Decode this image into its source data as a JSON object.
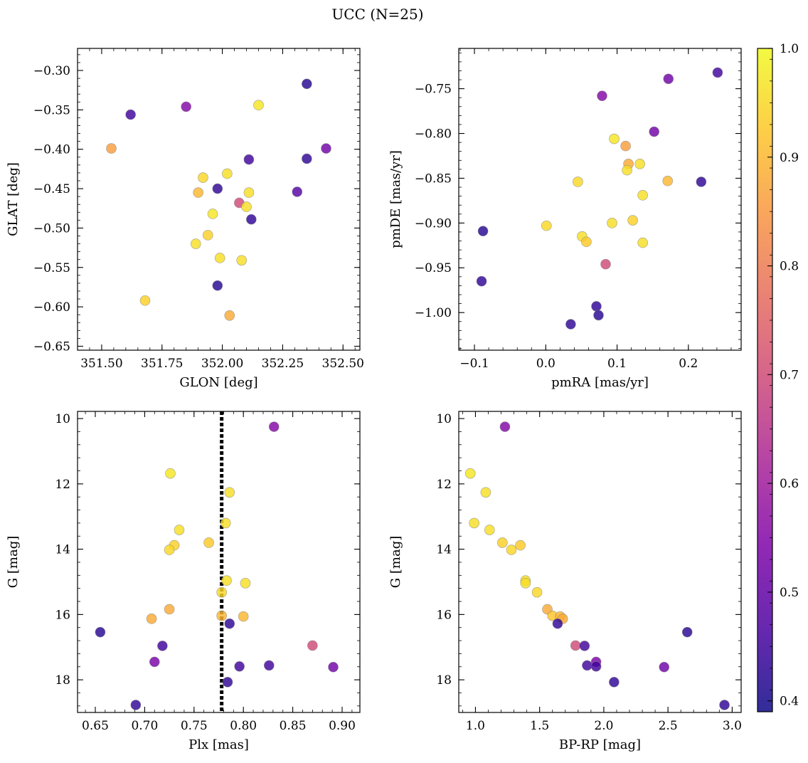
{
  "figure": {
    "title": "UCC (N=25)",
    "colormap": "plasma",
    "colorbar": {
      "min": 0.39,
      "max": 1.0,
      "ticks": [
        0.4,
        0.5,
        0.6,
        0.7,
        0.8,
        0.9,
        1.0
      ],
      "tick_labels": [
        "0.4",
        "0.5",
        "0.6",
        "0.7",
        "0.8",
        "0.9",
        "1.0"
      ]
    }
  },
  "chart_data": [
    {
      "type": "scatter",
      "id": "glon-glat",
      "xlabel": "GLON [deg]",
      "ylabel": "GLAT [deg]",
      "xlim": [
        351.4,
        352.57
      ],
      "ylim": [
        -0.655,
        -0.272
      ],
      "invert_y": false,
      "xticks": [
        351.5,
        351.75,
        352.0,
        352.25,
        352.5
      ],
      "xtick_labels": [
        "351.50",
        "351.75",
        "352.00",
        "352.25",
        "352.50"
      ],
      "yticks": [
        -0.3,
        -0.35,
        -0.4,
        -0.45,
        -0.5,
        -0.55,
        -0.6,
        -0.65
      ],
      "ytick_labels": [
        "−0.30",
        "−0.35",
        "−0.40",
        "−0.45",
        "−0.50",
        "−0.55",
        "−0.60",
        "−0.65"
      ],
      "points": [
        {
          "x": 352.35,
          "y": -0.317,
          "c": 0.42
        },
        {
          "x": 351.62,
          "y": -0.356,
          "c": 0.45
        },
        {
          "x": 351.85,
          "y": -0.346,
          "c": 0.55
        },
        {
          "x": 352.15,
          "y": -0.344,
          "c": 0.97
        },
        {
          "x": 351.54,
          "y": -0.399,
          "c": 0.86
        },
        {
          "x": 352.43,
          "y": -0.399,
          "c": 0.52
        },
        {
          "x": 352.11,
          "y": -0.413,
          "c": 0.45
        },
        {
          "x": 352.35,
          "y": -0.412,
          "c": 0.43
        },
        {
          "x": 351.92,
          "y": -0.436,
          "c": 0.95
        },
        {
          "x": 352.02,
          "y": -0.431,
          "c": 0.96
        },
        {
          "x": 351.98,
          "y": -0.45,
          "c": 0.43
        },
        {
          "x": 351.9,
          "y": -0.455,
          "c": 0.9
        },
        {
          "x": 352.11,
          "y": -0.455,
          "c": 0.96
        },
        {
          "x": 352.31,
          "y": -0.454,
          "c": 0.48
        },
        {
          "x": 352.07,
          "y": -0.468,
          "c": 0.7
        },
        {
          "x": 352.1,
          "y": -0.473,
          "c": 0.96
        },
        {
          "x": 351.96,
          "y": -0.482,
          "c": 0.97
        },
        {
          "x": 352.12,
          "y": -0.489,
          "c": 0.43
        },
        {
          "x": 351.94,
          "y": -0.509,
          "c": 0.94
        },
        {
          "x": 351.89,
          "y": -0.52,
          "c": 0.96
        },
        {
          "x": 351.99,
          "y": -0.538,
          "c": 0.96
        },
        {
          "x": 352.08,
          "y": -0.541,
          "c": 0.96
        },
        {
          "x": 351.98,
          "y": -0.573,
          "c": 0.42
        },
        {
          "x": 351.68,
          "y": -0.592,
          "c": 0.94
        },
        {
          "x": 352.03,
          "y": -0.611,
          "c": 0.88
        }
      ]
    },
    {
      "type": "scatter",
      "id": "pmra-pmde",
      "xlabel": "pmRA [mas/yr]",
      "ylabel": "pmDE [mas/yr]",
      "xlim": [
        -0.122,
        0.274
      ],
      "ylim": [
        -1.042,
        -0.705
      ],
      "invert_y": false,
      "xticks": [
        -0.1,
        0.0,
        0.1,
        0.2
      ],
      "xtick_labels": [
        "−0.1",
        "0.0",
        "0.1",
        "0.2"
      ],
      "yticks": [
        -0.75,
        -0.8,
        -0.85,
        -0.9,
        -0.95,
        -1.0
      ],
      "ytick_labels": [
        "−0.75",
        "−0.80",
        "−0.85",
        "−0.90",
        "−0.95",
        "−1.00"
      ],
      "points": [
        {
          "x": 0.241,
          "y": -0.732,
          "c": 0.45
        },
        {
          "x": 0.172,
          "y": -0.739,
          "c": 0.52
        },
        {
          "x": 0.079,
          "y": -0.758,
          "c": 0.55
        },
        {
          "x": 0.152,
          "y": -0.798,
          "c": 0.52
        },
        {
          "x": 0.096,
          "y": -0.806,
          "c": 0.97
        },
        {
          "x": 0.112,
          "y": -0.814,
          "c": 0.86
        },
        {
          "x": 0.116,
          "y": -0.834,
          "c": 0.88
        },
        {
          "x": 0.132,
          "y": -0.834,
          "c": 0.96
        },
        {
          "x": 0.114,
          "y": -0.841,
          "c": 0.96
        },
        {
          "x": 0.045,
          "y": -0.854,
          "c": 0.95
        },
        {
          "x": 0.171,
          "y": -0.853,
          "c": 0.9
        },
        {
          "x": 0.218,
          "y": -0.854,
          "c": 0.43
        },
        {
          "x": 0.136,
          "y": -0.869,
          "c": 0.96
        },
        {
          "x": 0.122,
          "y": -0.897,
          "c": 0.94
        },
        {
          "x": 0.093,
          "y": -0.9,
          "c": 0.96
        },
        {
          "x": 0.001,
          "y": -0.903,
          "c": 0.95
        },
        {
          "x": -0.088,
          "y": -0.909,
          "c": 0.42
        },
        {
          "x": 0.051,
          "y": -0.915,
          "c": 0.96
        },
        {
          "x": 0.057,
          "y": -0.921,
          "c": 0.93
        },
        {
          "x": 0.136,
          "y": -0.922,
          "c": 0.96
        },
        {
          "x": 0.084,
          "y": -0.946,
          "c": 0.7
        },
        {
          "x": -0.09,
          "y": -0.965,
          "c": 0.43
        },
        {
          "x": 0.071,
          "y": -0.993,
          "c": 0.43
        },
        {
          "x": 0.074,
          "y": -1.003,
          "c": 0.42
        },
        {
          "x": 0.035,
          "y": -1.013,
          "c": 0.43
        }
      ]
    },
    {
      "type": "scatter",
      "id": "plx-g",
      "xlabel": "Plx [mas]",
      "ylabel": "G [mag]",
      "xlim": [
        0.632,
        0.918
      ],
      "ylim": [
        19.0,
        9.78
      ],
      "invert_y": true,
      "vline": {
        "x": 0.778,
        "style": "dotted",
        "color": "#000000"
      },
      "xticks": [
        0.65,
        0.7,
        0.75,
        0.8,
        0.85,
        0.9
      ],
      "xtick_labels": [
        "0.65",
        "0.70",
        "0.75",
        "0.80",
        "0.85",
        "0.90"
      ],
      "yticks": [
        10,
        12,
        14,
        16,
        18
      ],
      "ytick_labels": [
        "10",
        "12",
        "14",
        "16",
        "18"
      ],
      "points": [
        {
          "x": 0.831,
          "y": 10.25,
          "c": 0.55
        },
        {
          "x": 0.726,
          "y": 11.68,
          "c": 0.97
        },
        {
          "x": 0.786,
          "y": 12.26,
          "c": 0.96
        },
        {
          "x": 0.782,
          "y": 13.2,
          "c": 0.96
        },
        {
          "x": 0.735,
          "y": 13.41,
          "c": 0.96
        },
        {
          "x": 0.73,
          "y": 13.88,
          "c": 0.94
        },
        {
          "x": 0.765,
          "y": 13.8,
          "c": 0.93
        },
        {
          "x": 0.725,
          "y": 14.02,
          "c": 0.95
        },
        {
          "x": 0.783,
          "y": 14.96,
          "c": 0.96
        },
        {
          "x": 0.802,
          "y": 15.04,
          "c": 0.96
        },
        {
          "x": 0.778,
          "y": 15.32,
          "c": 0.95
        },
        {
          "x": 0.725,
          "y": 15.84,
          "c": 0.88
        },
        {
          "x": 0.778,
          "y": 16.04,
          "c": 0.9
        },
        {
          "x": 0.8,
          "y": 16.06,
          "c": 0.9
        },
        {
          "x": 0.707,
          "y": 16.13,
          "c": 0.88
        },
        {
          "x": 0.786,
          "y": 16.28,
          "c": 0.43
        },
        {
          "x": 0.655,
          "y": 16.54,
          "c": 0.42
        },
        {
          "x": 0.718,
          "y": 16.96,
          "c": 0.45
        },
        {
          "x": 0.87,
          "y": 16.95,
          "c": 0.7
        },
        {
          "x": 0.71,
          "y": 17.45,
          "c": 0.53
        },
        {
          "x": 0.826,
          "y": 17.56,
          "c": 0.45
        },
        {
          "x": 0.796,
          "y": 17.59,
          "c": 0.45
        },
        {
          "x": 0.891,
          "y": 17.61,
          "c": 0.52
        },
        {
          "x": 0.784,
          "y": 18.07,
          "c": 0.43
        },
        {
          "x": 0.691,
          "y": 18.77,
          "c": 0.43
        }
      ]
    },
    {
      "type": "scatter",
      "id": "bprp-g",
      "xlabel": "BP-RP [mag]",
      "ylabel": "G [mag]",
      "xlim": [
        0.87,
        3.07
      ],
      "ylim": [
        19.0,
        9.78
      ],
      "invert_y": true,
      "xticks": [
        1.0,
        1.5,
        2.0,
        2.5,
        3.0
      ],
      "xtick_labels": [
        "1.0",
        "1.5",
        "2.0",
        "2.5",
        "3.0"
      ],
      "yticks": [
        10,
        12,
        14,
        16,
        18
      ],
      "ytick_labels": [
        "10",
        "12",
        "14",
        "16",
        "18"
      ],
      "points": [
        {
          "x": 1.23,
          "y": 10.25,
          "c": 0.55
        },
        {
          "x": 0.96,
          "y": 11.68,
          "c": 0.97
        },
        {
          "x": 1.08,
          "y": 12.26,
          "c": 0.96
        },
        {
          "x": 0.99,
          "y": 13.2,
          "c": 0.96
        },
        {
          "x": 1.11,
          "y": 13.41,
          "c": 0.96
        },
        {
          "x": 1.21,
          "y": 13.8,
          "c": 0.94
        },
        {
          "x": 1.35,
          "y": 13.88,
          "c": 0.93
        },
        {
          "x": 1.28,
          "y": 14.02,
          "c": 0.95
        },
        {
          "x": 1.39,
          "y": 14.96,
          "c": 0.96
        },
        {
          "x": 1.39,
          "y": 15.04,
          "c": 0.96
        },
        {
          "x": 1.48,
          "y": 15.32,
          "c": 0.95
        },
        {
          "x": 1.56,
          "y": 15.84,
          "c": 0.88
        },
        {
          "x": 1.6,
          "y": 16.04,
          "c": 0.92
        },
        {
          "x": 1.66,
          "y": 16.06,
          "c": 0.9
        },
        {
          "x": 1.68,
          "y": 16.13,
          "c": 0.88
        },
        {
          "x": 1.64,
          "y": 16.28,
          "c": 0.43
        },
        {
          "x": 2.65,
          "y": 16.54,
          "c": 0.42
        },
        {
          "x": 1.78,
          "y": 16.95,
          "c": 0.7
        },
        {
          "x": 1.85,
          "y": 16.96,
          "c": 0.45
        },
        {
          "x": 1.94,
          "y": 17.45,
          "c": 0.53
        },
        {
          "x": 1.87,
          "y": 17.56,
          "c": 0.45
        },
        {
          "x": 1.94,
          "y": 17.59,
          "c": 0.45
        },
        {
          "x": 2.47,
          "y": 17.61,
          "c": 0.52
        },
        {
          "x": 2.08,
          "y": 18.07,
          "c": 0.43
        },
        {
          "x": 2.94,
          "y": 18.77,
          "c": 0.43
        }
      ]
    }
  ]
}
